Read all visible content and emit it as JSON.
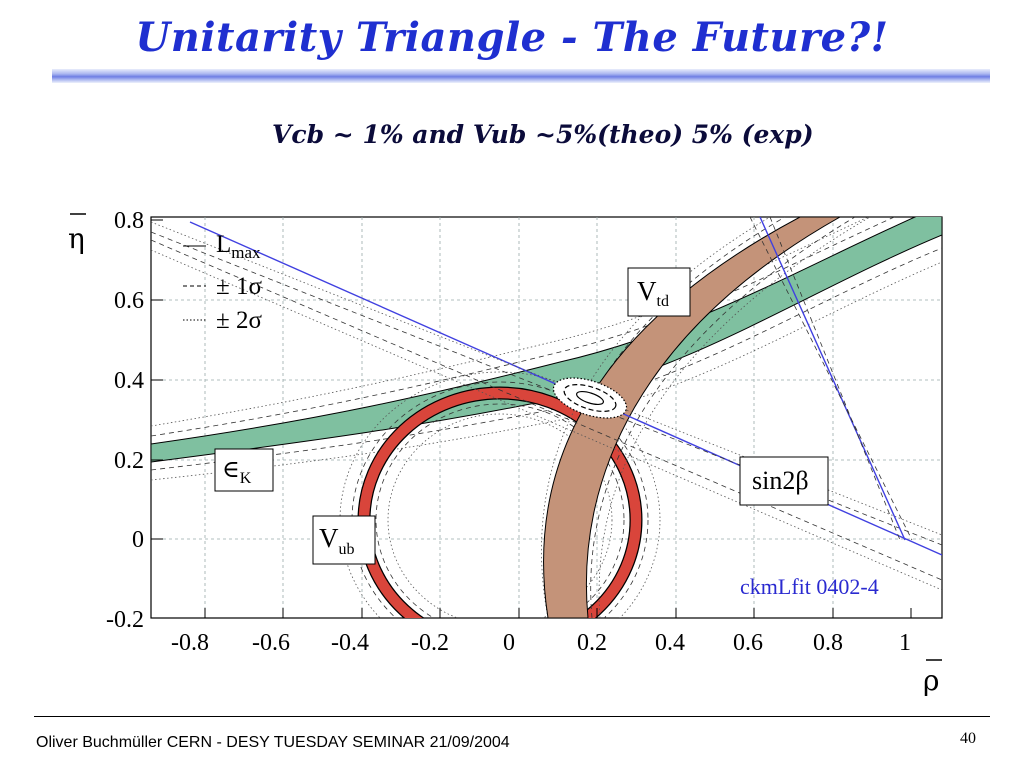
{
  "slide": {
    "title": "Unitarity Triangle - The Future?!",
    "subtitle": "Vcb ~ 1% and Vub ~5%(theo) 5% (exp)",
    "footer": "Oliver Buchmüller CERN - DESY TUESDAY SEMINAR 21/09/2004",
    "page_number": "40"
  },
  "plot": {
    "axes": {
      "x_symbol": "ρ",
      "y_symbol": "η",
      "x_ticks": [
        "-0.8",
        "-0.6",
        "-0.4",
        "-0.2",
        "0",
        "0.2",
        "0.4",
        "0.6",
        "0.8",
        "1"
      ],
      "y_ticks": [
        "0.8",
        "0.6",
        "0.4",
        "0.2",
        "0",
        "-0.2"
      ]
    },
    "legend": {
      "lmax_main": "L",
      "lmax_sub": "max",
      "one_sigma": "± 1σ",
      "two_sigma": "± 2σ"
    },
    "labels": {
      "vtd_main": "V",
      "vtd_sub": "td",
      "vub_main": "V",
      "vub_sub": "ub",
      "ek_main": "∈",
      "ek_sub": "K",
      "sin2b": "sin2β",
      "credit": "ckmLfit 0402-4"
    },
    "colors": {
      "vtd": "#c49379",
      "vub": "#d9453b",
      "epsilon_k": "#7fc0a0",
      "sin2beta": "#4040e0",
      "credit": "#2a2ad0"
    }
  }
}
